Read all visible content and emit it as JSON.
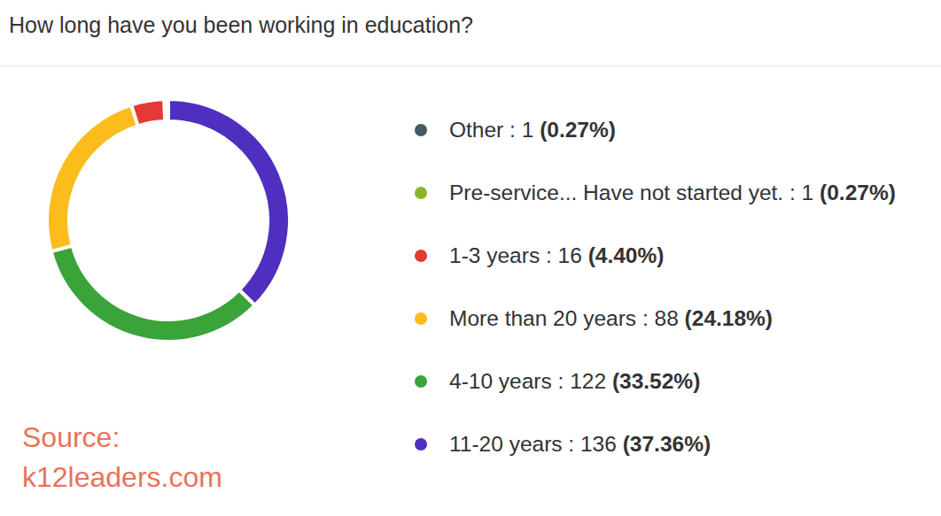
{
  "chart_data": {
    "type": "donut",
    "title": "How long have you been working in education?",
    "categories": [
      "Other",
      "Pre-service... Have not started yet.",
      "1-3 years",
      "More than 20 years",
      "4-10 years",
      "11-20 years"
    ],
    "values": [
      0.27,
      0.27,
      4.4,
      24.18,
      33.52,
      37.36
    ],
    "value_labels": [
      "(0.27%)",
      "(0.27%)",
      "(4.40%)",
      "(24.18%)",
      "(33.52%)",
      "(37.36%)"
    ],
    "counts": [
      1,
      1,
      16,
      88,
      122,
      136
    ],
    "colors": [
      "#455a64",
      "#8bb82b",
      "#e53935",
      "#fbbc1c",
      "#3aa33a",
      "#4f2fbf"
    ],
    "legend": "right",
    "annotations": [
      "Source:",
      "k12leaders.com"
    ]
  }
}
